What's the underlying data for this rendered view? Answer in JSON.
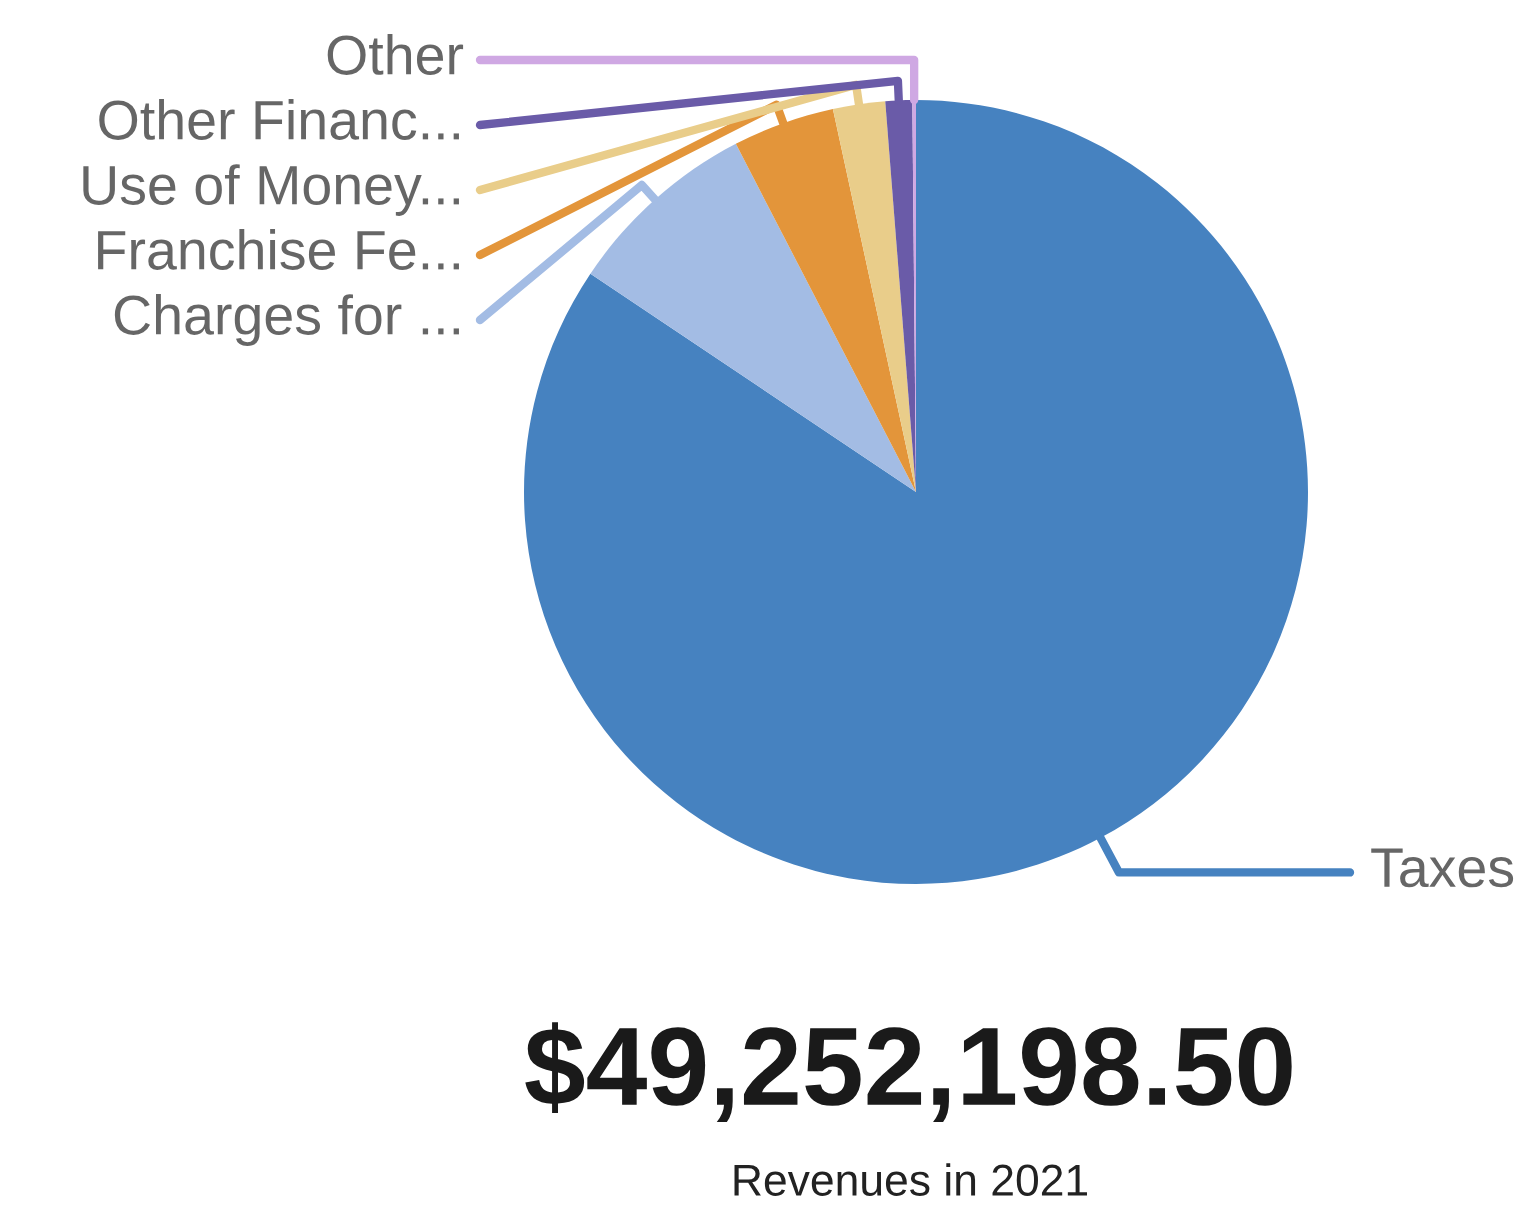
{
  "chart_data": {
    "type": "pie",
    "title": "$49,252,198.50",
    "subtitle": "Revenues in 2021",
    "categories": [
      "Taxes",
      "Charges for ...",
      "Franchise Fe...",
      "Use of Money...",
      "Other Financ...",
      "Other"
    ],
    "values": [
      84.4,
      8.0,
      4.2,
      2.15,
      1.1,
      0.15
    ],
    "colors": [
      "#4682c0",
      "#a3bce4",
      "#e3953a",
      "#e9cd8a",
      "#6a5ba8",
      "#cfa8e3"
    ]
  }
}
